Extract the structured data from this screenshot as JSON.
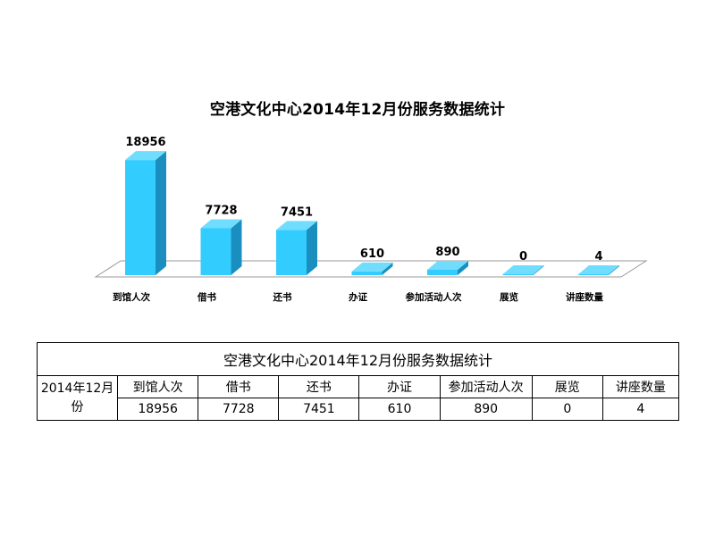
{
  "chart_data": {
    "type": "bar",
    "title": "空港文化中心2014年12月份服务数据统计",
    "categories": [
      "到馆人次",
      "借书",
      "还书",
      "办证",
      "参加活动人次",
      "展览",
      "讲座数量"
    ],
    "values": [
      18956,
      7728,
      7451,
      610,
      890,
      0,
      4
    ],
    "value_labels": [
      "18956",
      "7728",
      "7451",
      "610",
      "890",
      "0",
      "4"
    ],
    "ylim": [
      0,
      20000
    ],
    "grid": false,
    "legend": "none",
    "colors": {
      "bar_front": "#33ccff",
      "bar_side": "#1a8fbf",
      "bar_top": "#70ddff",
      "floor_fill": "#ffffff",
      "floor_stroke": "#999999"
    }
  },
  "table": {
    "title": "空港文化中心2014年12月份服务数据统计",
    "row_header": "2014年12月份",
    "columns": [
      "到馆人次",
      "借书",
      "还书",
      "办证",
      "参加活动人次",
      "展览",
      "讲座数量"
    ],
    "values": [
      "18956",
      "7728",
      "7451",
      "610",
      "890",
      "0",
      "4"
    ]
  }
}
